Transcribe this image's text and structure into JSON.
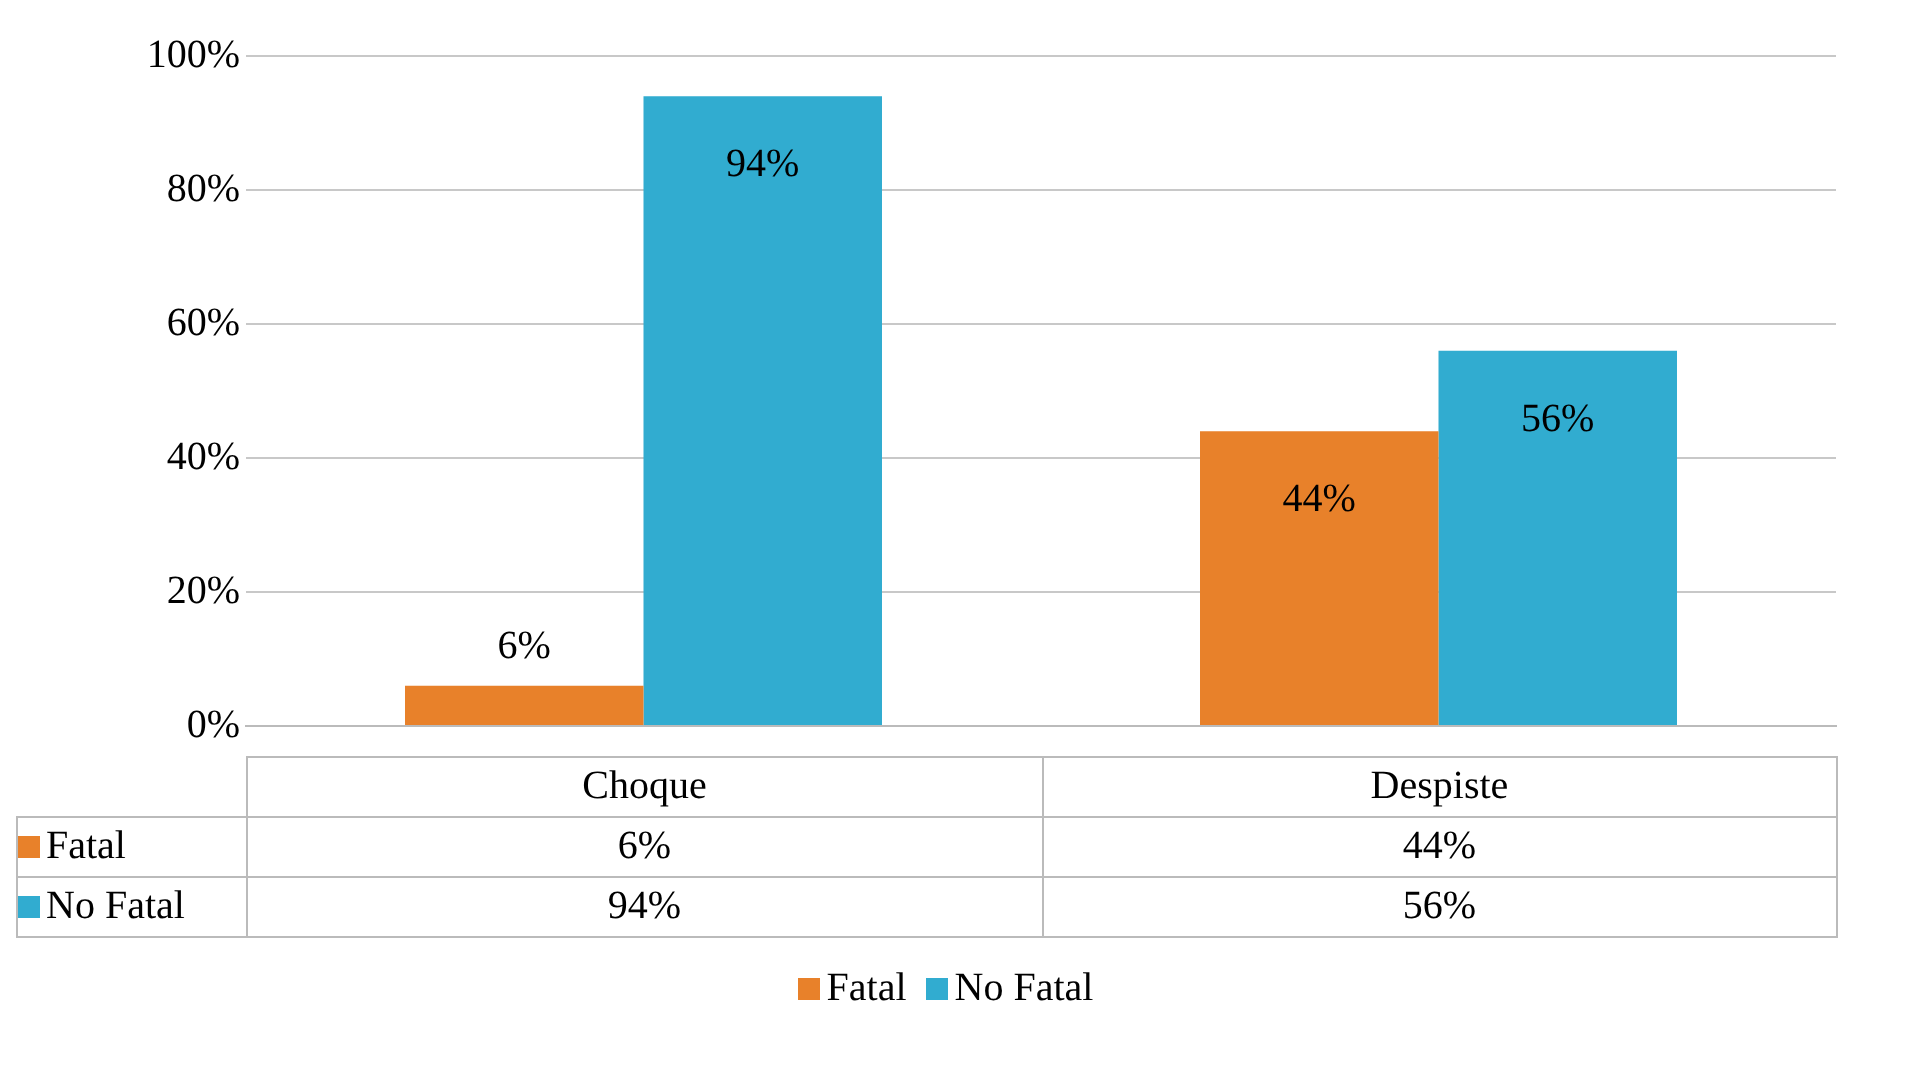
{
  "chart_data": {
    "type": "bar",
    "categories": [
      "Choque",
      "Despiste"
    ],
    "series": [
      {
        "name": "Fatal",
        "color": "#e8812a",
        "values": [
          6,
          44
        ],
        "value_labels": [
          "6%",
          "44%"
        ]
      },
      {
        "name": "No Fatal",
        "color": "#31acd0",
        "values": [
          94,
          56
        ],
        "value_labels": [
          "94%",
          "56%"
        ]
      }
    ],
    "ylim": [
      0,
      100
    ],
    "yticks": [
      {
        "value": 0,
        "label": "0%"
      },
      {
        "value": 20,
        "label": "20%"
      },
      {
        "value": 40,
        "label": "40%"
      },
      {
        "value": 60,
        "label": "60%"
      },
      {
        "value": 80,
        "label": "80%"
      },
      {
        "value": 100,
        "label": "100%"
      }
    ],
    "grid": "y",
    "legend": "bottom"
  }
}
